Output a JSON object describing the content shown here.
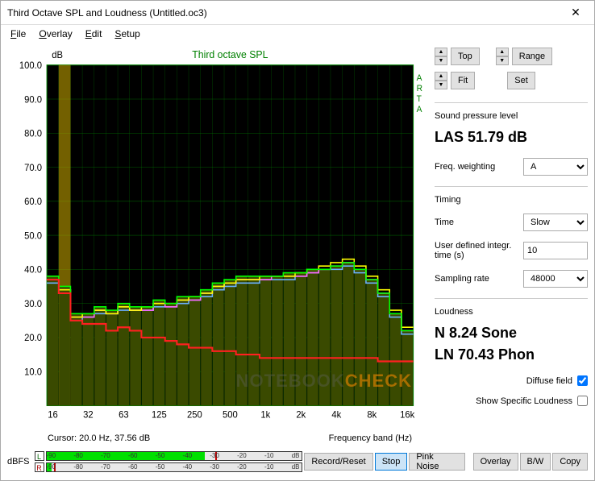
{
  "window": {
    "title": "Third Octave SPL and Loudness (Untitled.oc3)"
  },
  "menu": {
    "file": "File",
    "overlay": "Overlay",
    "edit": "Edit",
    "setup": "Setup"
  },
  "chart": {
    "title": "Third octave SPL",
    "ylabel": "dB",
    "xlabel": "Frequency band (Hz)",
    "side_label": "ARTA",
    "background": "#000000",
    "grid_color": "#008000",
    "title_color": "#008000",
    "axis_color": "#008000",
    "bar_fill": "#3a4a00",
    "ylim": [
      0,
      100
    ],
    "ytick_step": 10,
    "x_bands": [
      16,
      20,
      25,
      31.5,
      40,
      50,
      63,
      80,
      100,
      125,
      160,
      200,
      250,
      315,
      400,
      500,
      630,
      800,
      1000,
      1250,
      1600,
      2000,
      2500,
      3150,
      4000,
      5000,
      6300,
      8000,
      10000,
      12500,
      16000
    ],
    "x_major_labels": [
      "16",
      "32",
      "63",
      "125",
      "250",
      "500",
      "1k",
      "2k",
      "4k",
      "8k",
      "16k"
    ],
    "x_major_vals": [
      16,
      31.5,
      63,
      125,
      250,
      500,
      1000,
      2000,
      4000,
      8000,
      16000
    ],
    "series": {
      "green": {
        "color": "#00ff00",
        "width": 1.5,
        "values": [
          38,
          35,
          27,
          27,
          29,
          28,
          30,
          29,
          29,
          31,
          30,
          32,
          32,
          34,
          36,
          37,
          38,
          38,
          38,
          38,
          39,
          39,
          40,
          40,
          41,
          42,
          40,
          37,
          33,
          27,
          22
        ]
      },
      "yellow": {
        "color": "#ffff00",
        "width": 1.5,
        "values": [
          37,
          34,
          26,
          27,
          28,
          27,
          29,
          28,
          29,
          30,
          30,
          31,
          32,
          33,
          35,
          36,
          37,
          37,
          38,
          38,
          38,
          39,
          40,
          41,
          42,
          43,
          41,
          38,
          34,
          28,
          23
        ]
      },
      "blue": {
        "color": "#6bb0ff",
        "width": 1.5,
        "values": [
          36,
          33,
          25,
          26,
          27,
          27,
          28,
          28,
          28,
          29,
          29,
          30,
          31,
          32,
          34,
          35,
          36,
          36,
          37,
          37,
          37,
          38,
          39,
          40,
          40,
          41,
          39,
          36,
          32,
          26,
          21
        ]
      },
      "magenta": {
        "color": "#ff66ff",
        "width": 1.5,
        "values": [
          37,
          34,
          26,
          26,
          28,
          27,
          29,
          28,
          28,
          30,
          29,
          31,
          31,
          33,
          35,
          36,
          37,
          37,
          37,
          38,
          38,
          38,
          39,
          40,
          41,
          42,
          40,
          37,
          33,
          27,
          22
        ]
      },
      "red": {
        "color": "#ff2020",
        "width": 2.0,
        "values": [
          37,
          33,
          25,
          24,
          24,
          22,
          23,
          22,
          20,
          20,
          19,
          18,
          17,
          17,
          16,
          16,
          15,
          15,
          14,
          14,
          14,
          14,
          14,
          14,
          14,
          14,
          14,
          14,
          13,
          13,
          13
        ]
      }
    },
    "highlight_band_index": 1,
    "highlight_color": "#c0a000"
  },
  "cursor": {
    "label": "Cursor:",
    "value": "20.0 Hz, 37.56 dB"
  },
  "right_panel": {
    "top_btn": "Top",
    "fit_btn": "Fit",
    "range_btn": "Range",
    "set_btn": "Set",
    "spl_label": "Sound pressure level",
    "spl_value": "LAS 51.79 dB",
    "freq_weight_label": "Freq. weighting",
    "freq_weight_value": "A",
    "timing_label": "Timing",
    "time_label": "Time",
    "time_value": "Slow",
    "integ_label": "User defined integr. time (s)",
    "integ_value": "10",
    "sampling_label": "Sampling rate",
    "sampling_value": "48000",
    "loudness_label": "Loudness",
    "sone_value": "N 8.24 Sone",
    "phon_value": "LN 70.43 Phon",
    "diffuse_label": "Diffuse field",
    "diffuse_checked": true,
    "specific_label": "Show Specific Loudness",
    "specific_checked": false
  },
  "meters": {
    "label": "dBFS",
    "ticks": [
      -90,
      -80,
      -70,
      -60,
      -50,
      -40,
      -30,
      -20,
      -10,
      "dB"
    ],
    "L": {
      "fill_pct": 62,
      "peak_pct": 66
    },
    "R": {
      "fill_pct": 2,
      "peak_pct": 3
    }
  },
  "actions": {
    "record": "Record/Reset",
    "stop": "Stop",
    "pink": "Pink Noise",
    "overlay": "Overlay",
    "bw": "B/W",
    "copy": "Copy"
  },
  "watermark": {
    "a": "NOTEBOOK",
    "b": "CHECK"
  }
}
